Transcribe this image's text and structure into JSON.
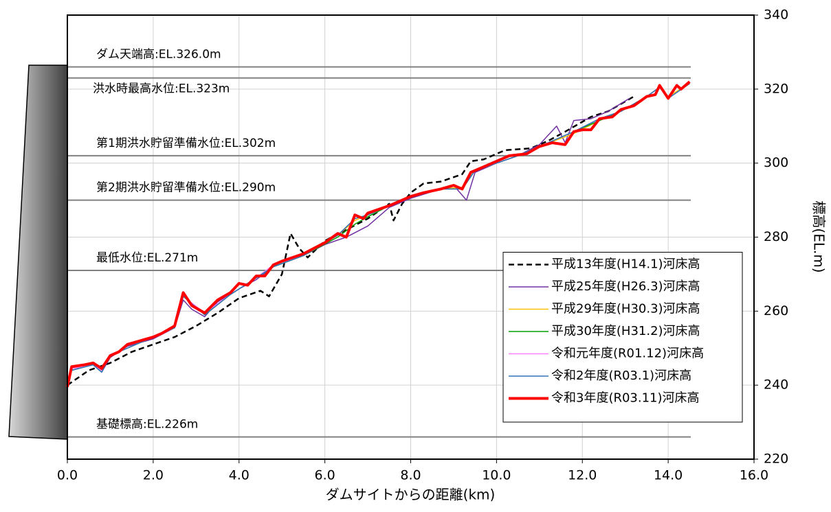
{
  "chart_data": {
    "type": "line",
    "xlabel": "ダムサイトからの距離(km)",
    "ylabel": "標高(EL.m)",
    "xlim": [
      0,
      16
    ],
    "ylim": [
      220,
      340
    ],
    "xticks": [
      {
        "value": 0,
        "label": "0.0"
      },
      {
        "value": 2,
        "label": "2.0"
      },
      {
        "value": 4,
        "label": "4.0"
      },
      {
        "value": 6,
        "label": "6.0"
      },
      {
        "value": 8,
        "label": "8.0"
      },
      {
        "value": 10,
        "label": "10.0"
      },
      {
        "value": 12,
        "label": "12.0"
      },
      {
        "value": 14,
        "label": "14.0"
      },
      {
        "value": 16,
        "label": "16.0"
      }
    ],
    "yticks": [
      220,
      240,
      260,
      280,
      300,
      320,
      340
    ],
    "yaxis_side": "right",
    "grid": true,
    "legend": "lower right",
    "hlines": [
      {
        "value": 326,
        "label": "ダム天端高:EL.326.0m"
      },
      {
        "value": 323,
        "label": "洪水時最高水位:EL.323m"
      },
      {
        "value": 302,
        "label": "第1期洪水貯留準備水位:EL.302m"
      },
      {
        "value": 290,
        "label": "第2期洪水貯留準備水位:EL.290m"
      },
      {
        "value": 271,
        "label": "最低水位:EL.271m"
      },
      {
        "value": 226,
        "label": "基礎標高:EL.226m"
      }
    ],
    "series": [
      {
        "name": "平成13年度(H14.1)河床高",
        "color": "#000000",
        "linestyle": "dashed",
        "linewidth": 2.5,
        "x": [
          0,
          0.5,
          1.0,
          1.5,
          2.0,
          2.5,
          3.0,
          3.5,
          4.0,
          4.5,
          4.7,
          5.0,
          5.2,
          5.4,
          5.6,
          6.0,
          6.5,
          7.0,
          7.5,
          7.6,
          7.8,
          8.0,
          8.3,
          8.7,
          9.2,
          9.4,
          9.7,
          10.2,
          10.8,
          11.2,
          11.6,
          12.2,
          12.6,
          13.2
        ],
        "values": [
          240,
          244,
          246,
          249,
          251,
          253,
          256,
          259.5,
          263.5,
          265.5,
          264,
          270,
          281,
          277,
          274.5,
          279,
          282,
          285,
          289,
          284.5,
          289,
          292,
          294.5,
          295,
          297,
          300.5,
          301,
          303.5,
          304,
          306,
          308.5,
          312.5,
          314,
          318
        ]
      },
      {
        "name": "平成25年度(H26.3)河床高",
        "color": "#7030a0",
        "linestyle": "solid",
        "linewidth": 1.5,
        "x": [
          0,
          0.1,
          0.4,
          0.6,
          0.8,
          1.0,
          1.4,
          2.0,
          2.5,
          2.7,
          2.9,
          3.2,
          3.5,
          4.0,
          4.4,
          4.8,
          5.5,
          6.0,
          6.5,
          7.0,
          7.5,
          8.0,
          8.7,
          9.0,
          9.3,
          9.5,
          10.0,
          10.5,
          11.0,
          11.4,
          11.6,
          11.8,
          12.2,
          12.6,
          13.1
        ],
        "values": [
          240,
          244,
          245,
          245.5,
          243.5,
          247.5,
          250.5,
          252.5,
          255.5,
          263,
          260.5,
          258.5,
          262.5,
          266,
          268.5,
          272,
          275,
          278,
          280,
          283,
          288,
          290.5,
          293,
          294,
          290,
          297.5,
          300,
          302,
          305,
          310,
          305.5,
          311.5,
          312,
          314,
          317.5
        ]
      },
      {
        "name": "平成29年度(H30.3)河床高",
        "color": "#ffc000",
        "linestyle": "solid",
        "linewidth": 1.5,
        "x": [
          0,
          0.1,
          0.6,
          0.8,
          1.0,
          1.7,
          2.5,
          2.7,
          3.2,
          3.8,
          4.4,
          4.8,
          5.5,
          6.3,
          6.7,
          7.0,
          7.5,
          8.0,
          8.7,
          9.2,
          9.5,
          10.0,
          10.5,
          11.0,
          11.8,
          12.4,
          12.9,
          13.5,
          13.8,
          14.0,
          14.5
        ],
        "values": [
          240,
          244.5,
          245.5,
          244,
          248,
          251.5,
          255.5,
          264,
          259,
          264.5,
          269,
          272,
          275,
          280.5,
          284.5,
          286,
          288.5,
          291,
          293,
          293.5,
          298,
          300,
          302,
          304.5,
          308,
          311.5,
          314,
          318,
          320.5,
          318,
          321.5
        ]
      },
      {
        "name": "平成30年度(H31.2)河床高",
        "color": "#00a000",
        "linestyle": "solid",
        "linewidth": 1.5,
        "x": [
          0,
          0.1,
          0.6,
          0.8,
          1.0,
          1.7,
          2.5,
          2.7,
          3.2,
          3.8,
          4.4,
          4.8,
          5.5,
          6.3,
          6.7,
          7.0,
          7.5,
          8.0,
          8.7,
          9.2,
          9.5,
          10.0,
          10.5,
          11.0,
          11.8,
          12.4,
          12.9,
          13.5,
          13.8,
          14.0,
          14.5
        ],
        "values": [
          240,
          244.5,
          245.5,
          244,
          248,
          251.5,
          255.5,
          264,
          259,
          264.5,
          269,
          272,
          275,
          280,
          283.5,
          285.5,
          288.5,
          291,
          293,
          293,
          298,
          300,
          302,
          304.5,
          308.5,
          311.5,
          314,
          318,
          320.5,
          317.5,
          321.5
        ]
      },
      {
        "name": "令和元年度(R01.12)河床高",
        "color": "#ff80ff",
        "linestyle": "solid",
        "linewidth": 1.5,
        "x": [
          0,
          0.1,
          0.6,
          0.8,
          1.0,
          1.7,
          2.5,
          2.7,
          3.2,
          3.8,
          4.4,
          4.8,
          5.5,
          6.3,
          6.7,
          7.0,
          7.5,
          8.0,
          8.7,
          9.2,
          9.5,
          10.0,
          10.5,
          11.0,
          11.8,
          12.4,
          12.9,
          13.5,
          13.8,
          14.0,
          14.5
        ],
        "values": [
          240,
          244.5,
          245.5,
          244,
          248,
          251.5,
          255.5,
          264,
          259.5,
          264.5,
          269,
          272.5,
          275,
          280.5,
          285,
          286,
          288.5,
          291,
          293,
          293,
          298,
          300,
          302,
          304.5,
          308.5,
          312,
          314,
          318,
          320.5,
          317.5,
          321.5
        ]
      },
      {
        "name": "令和2年度(R03.1)河床高",
        "color": "#2e75b6",
        "linestyle": "solid",
        "linewidth": 1.5,
        "x": [
          0,
          0.1,
          0.6,
          0.8,
          1.0,
          1.7,
          2.5,
          2.7,
          3.2,
          3.8,
          4.4,
          4.8,
          5.5,
          6.3,
          6.7,
          7.0,
          7.5,
          8.0,
          8.7,
          9.2,
          9.5,
          10.0,
          10.5,
          11.0,
          11.8,
          12.4,
          12.9,
          13.5,
          13.8,
          14.0,
          14.5
        ],
        "values": [
          240,
          244,
          245.5,
          243.5,
          248,
          251.5,
          255.5,
          264,
          259,
          264.5,
          269,
          272,
          275,
          280.5,
          285,
          286,
          288.5,
          291,
          293,
          293,
          298,
          300,
          302,
          304.5,
          308.5,
          312,
          314,
          318,
          320.5,
          317.5,
          321.5
        ]
      },
      {
        "name": "令和3年度(R03.11)河床高",
        "color": "#ff0000",
        "linestyle": "solid",
        "linewidth": 4,
        "x": [
          0,
          0.1,
          0.4,
          0.6,
          0.8,
          1.0,
          1.2,
          1.4,
          1.7,
          2.0,
          2.2,
          2.5,
          2.7,
          2.9,
          3.2,
          3.5,
          3.8,
          4.0,
          4.2,
          4.4,
          4.6,
          4.8,
          5.0,
          5.5,
          6.0,
          6.3,
          6.5,
          6.7,
          6.9,
          7.0,
          7.5,
          8.0,
          8.3,
          8.7,
          9.0,
          9.2,
          9.4,
          9.7,
          10.0,
          10.3,
          10.7,
          11.0,
          11.3,
          11.6,
          11.8,
          12.0,
          12.2,
          12.4,
          12.7,
          12.9,
          13.2,
          13.5,
          13.7,
          13.8,
          14.0,
          14.2,
          14.3,
          14.5
        ],
        "values": [
          239.5,
          245,
          245.5,
          246,
          244.5,
          248,
          249,
          251,
          252,
          253,
          254,
          256,
          265,
          261.5,
          259.5,
          263,
          265,
          267.5,
          267,
          269.5,
          269.5,
          272.5,
          273.5,
          275.5,
          278.5,
          281,
          280,
          286,
          285,
          286.5,
          288.5,
          291,
          292,
          293,
          294,
          293,
          297.5,
          299,
          300.5,
          302,
          302.5,
          304.5,
          305.5,
          305,
          308.5,
          309,
          309,
          312,
          312.5,
          314.5,
          315.5,
          318,
          318.5,
          321,
          317.5,
          321,
          320,
          322
        ]
      }
    ]
  }
}
